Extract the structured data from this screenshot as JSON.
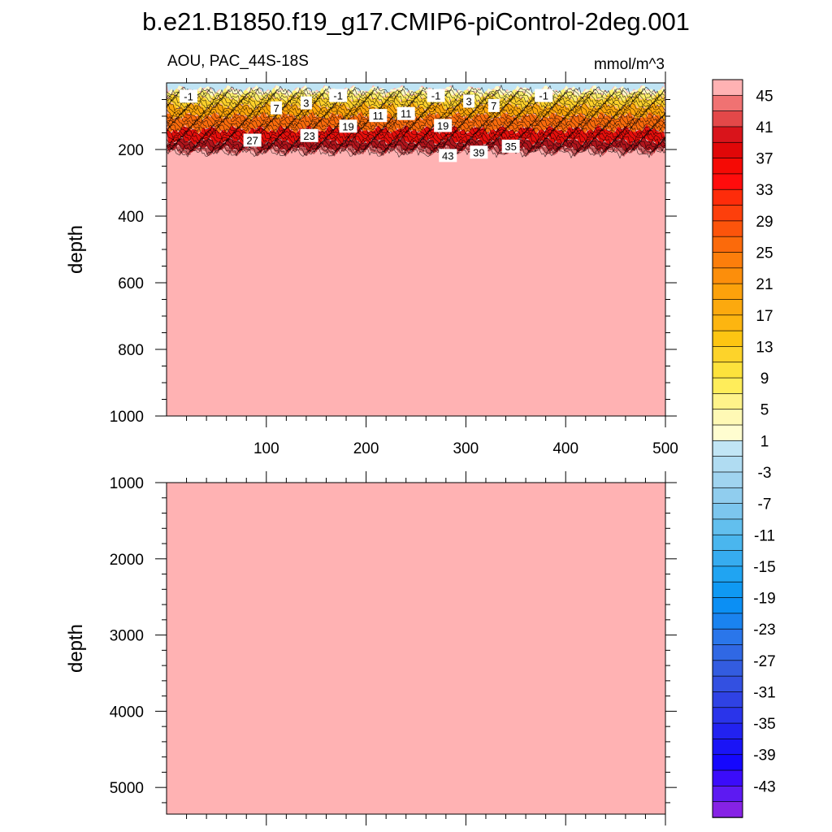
{
  "title": "b.e21.B1850.f19_g17.CMIP6-piControl-2deg.001",
  "chart_data": [
    {
      "type": "heatmap",
      "subtitle_left": "AOU, PAC_44S-18S",
      "subtitle_right": "mmol/m^3",
      "ylabel": "depth",
      "xlim": [
        0,
        500
      ],
      "ylim": [
        1000,
        0
      ],
      "x_ticks": [
        "100",
        "200",
        "300",
        "400",
        "500"
      ],
      "y_ticks": [
        "200",
        "400",
        "600",
        "800",
        "1000"
      ],
      "x_tick_values": [
        100,
        200,
        300,
        400,
        500
      ],
      "y_tick_values": [
        200,
        400,
        600,
        800,
        1000
      ],
      "layers": [
        {
          "depth_top": 0,
          "depth_bottom": 20,
          "color": "#bfe4f4"
        },
        {
          "depth_top": 20,
          "depth_bottom": 30,
          "color": "#fffbc8"
        },
        {
          "depth_top": 30,
          "depth_bottom": 45,
          "color": "#fdef6b"
        },
        {
          "depth_top": 45,
          "depth_bottom": 70,
          "color": "#fdd02a"
        },
        {
          "depth_top": 70,
          "depth_bottom": 100,
          "color": "#fca50b"
        },
        {
          "depth_top": 100,
          "depth_bottom": 140,
          "color": "#f96b0c"
        },
        {
          "depth_top": 140,
          "depth_bottom": 175,
          "color": "#e60f0c"
        },
        {
          "depth_top": 175,
          "depth_bottom": 200,
          "color": "#b0151c"
        },
        {
          "depth_top": 200,
          "depth_bottom": 210,
          "color": "#c95b5e"
        },
        {
          "depth_top": 210,
          "depth_bottom": 1000,
          "color": "#ffb2b3"
        }
      ],
      "contour_labels": [
        {
          "text": "-1",
          "x": 22,
          "y": 40
        },
        {
          "text": "7",
          "x": 110,
          "y": 75
        },
        {
          "text": "3",
          "x": 140,
          "y": 60
        },
        {
          "text": "-1",
          "x": 172,
          "y": 38
        },
        {
          "text": "11",
          "x": 212,
          "y": 98
        },
        {
          "text": "11",
          "x": 240,
          "y": 92
        },
        {
          "text": "-1",
          "x": 270,
          "y": 38
        },
        {
          "text": "3",
          "x": 303,
          "y": 55
        },
        {
          "text": "7",
          "x": 328,
          "y": 68
        },
        {
          "text": "-1",
          "x": 378,
          "y": 38
        },
        {
          "text": "27",
          "x": 86,
          "y": 172
        },
        {
          "text": "23",
          "x": 143,
          "y": 158
        },
        {
          "text": "19",
          "x": 182,
          "y": 130
        },
        {
          "text": "19",
          "x": 277,
          "y": 128
        },
        {
          "text": "43",
          "x": 282,
          "y": 218
        },
        {
          "text": "39",
          "x": 313,
          "y": 208
        },
        {
          "text": "35",
          "x": 345,
          "y": 190
        }
      ]
    },
    {
      "type": "heatmap",
      "ylabel": "depth",
      "xlim": [
        0,
        500
      ],
      "ylim": [
        1000,
        5350
      ],
      "y_ticks": [
        "1000",
        "2000",
        "3000",
        "4000",
        "5000"
      ],
      "y_tick_values": [
        1000,
        2000,
        3000,
        4000,
        5000
      ],
      "fill_color": "#ffb2b3"
    }
  ],
  "colorbar": {
    "labels": [
      "45",
      "41",
      "37",
      "33",
      "29",
      "25",
      "21",
      "17",
      "13",
      "9",
      "5",
      "1",
      "-3",
      "-7",
      "-11",
      "-15",
      "-19",
      "-23",
      "-27",
      "-31",
      "-35",
      "-39",
      "-43"
    ],
    "colors": [
      "#ffb2b3",
      "#f07272",
      "#e34849",
      "#d9141b",
      "#e00708",
      "#f50a05",
      "#ff0c0c",
      "#fe2c0a",
      "#fd3f0c",
      "#fc540b",
      "#fb6a0b",
      "#fc7e0b",
      "#fc8e0b",
      "#fca10b",
      "#fca90e",
      "#fdb510",
      "#fdc512",
      "#fdd32a",
      "#fde23c",
      "#ffed5a",
      "#fff38a",
      "#fff9b5",
      "#fffdd0",
      "#c1e5f5",
      "#b0dcf2",
      "#a0d4f0",
      "#90cdee",
      "#7cc6ee",
      "#62bfee",
      "#4ab6ee",
      "#36acf0",
      "#20a4f2",
      "#0f99f3",
      "#0b8ff4",
      "#1a83ef",
      "#2a76ea",
      "#3068e4",
      "#335ce0",
      "#3350e1",
      "#2f42e4",
      "#2a34ea",
      "#2222f0",
      "#1a14f6",
      "#1507fd",
      "#3b0cfa",
      "#5d1af2",
      "#8622e5"
    ]
  }
}
